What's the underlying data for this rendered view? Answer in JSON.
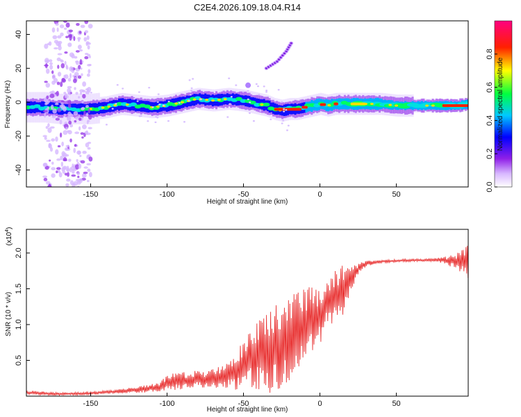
{
  "title": "C2E4.2026.109.18.04.R14",
  "chart_data": [
    {
      "type": "heatmap",
      "xlabel": "Height of straight line (km)",
      "ylabel": "Frequency (Hz)",
      "xlim": [
        -192,
        97
      ],
      "ylim": [
        -50,
        48
      ],
      "xticks": [
        -150,
        -100,
        -50,
        0,
        50
      ],
      "yticks": [
        -40,
        -20,
        0,
        20,
        40
      ],
      "colorbar": {
        "label": "Normalized spectral amplitude",
        "range": [
          0,
          1
        ],
        "ticks": [
          "0.0",
          "0.2",
          "0.4",
          "0.6",
          "0.8"
        ],
        "colormap": "rainbow (white–violet–blue–cyan–green–yellow–red–magenta)"
      },
      "ridge": {
        "x": [
          -192,
          -180,
          -170,
          -160,
          -150,
          -140,
          -130,
          -120,
          -110,
          -100,
          -90,
          -80,
          -70,
          -60,
          -50,
          -45,
          -40,
          -35,
          -30,
          -25,
          -20,
          -15,
          -10,
          -5,
          0,
          5,
          10,
          20,
          30,
          40,
          50,
          60,
          70,
          80,
          90,
          97
        ],
        "y": [
          -3,
          -3,
          -4,
          -4,
          -4,
          -3,
          -1,
          -2,
          -3,
          -2,
          0,
          2,
          1,
          2,
          1,
          0,
          -1,
          -2,
          -4,
          -5,
          -4,
          -4,
          -3,
          -2,
          -1,
          -2,
          -1,
          -1,
          -1,
          -1,
          -2,
          -2,
          -2,
          -2,
          -2,
          -1
        ]
      },
      "features": [
        {
          "type": "noise-column",
          "x_range": [
            -180,
            -150
          ],
          "y_range": [
            -50,
            48
          ]
        },
        {
          "type": "side-trace",
          "x": [
            -35,
            -28,
            -22,
            -18
          ],
          "y": [
            20,
            24,
            30,
            36
          ]
        },
        {
          "type": "weak-blob",
          "x": -47,
          "y": 10
        }
      ]
    },
    {
      "type": "line",
      "xlabel": "Height of straight line (km)",
      "ylabel": "SNR (10 * v/v)",
      "y_multiplier": "(x10",
      "y_multiplier_exp": "4",
      "xlim": [
        -192,
        97
      ],
      "ylim": [
        0,
        2.33
      ],
      "xticks": [
        -150,
        -100,
        -50,
        0,
        50
      ],
      "yticks": [
        "0.5",
        "1.0",
        "1.5",
        "2.0"
      ],
      "series": [
        {
          "color": "#e83030",
          "envelope": {
            "x": [
              -192,
              -170,
              -150,
              -130,
              -115,
              -105,
              -100,
              -95,
              -90,
              -85,
              -80,
              -75,
              -70,
              -65,
              -60,
              -55,
              -50,
              -45,
              -40,
              -35,
              -30,
              -25,
              -20,
              -15,
              -10,
              -5,
              0,
              5,
              10,
              15,
              20,
              25,
              30,
              40,
              50,
              60,
              70,
              80,
              90,
              97
            ],
            "mid": [
              0.05,
              0.03,
              0.04,
              0.07,
              0.1,
              0.13,
              0.18,
              0.2,
              0.22,
              0.22,
              0.24,
              0.22,
              0.26,
              0.27,
              0.32,
              0.36,
              0.42,
              0.52,
              0.58,
              0.6,
              0.65,
              0.7,
              0.78,
              0.85,
              0.95,
              1.05,
              1.12,
              1.3,
              1.38,
              1.48,
              1.62,
              1.78,
              1.85,
              1.88,
              1.89,
              1.9,
              1.9,
              1.9,
              1.88,
              1.88
            ],
            "amp": [
              0.03,
              0.02,
              0.02,
              0.03,
              0.05,
              0.07,
              0.1,
              0.13,
              0.12,
              0.12,
              0.12,
              0.12,
              0.14,
              0.16,
              0.2,
              0.28,
              0.35,
              0.42,
              0.5,
              0.55,
              0.62,
              0.6,
              0.62,
              0.6,
              0.55,
              0.5,
              0.4,
              0.3,
              0.38,
              0.35,
              0.18,
              0.08,
              0.04,
              0.02,
              0.02,
              0.02,
              0.02,
              0.04,
              0.12,
              0.25
            ]
          }
        }
      ]
    }
  ],
  "colors": {
    "line": "#e83030",
    "axis": "#000000"
  }
}
